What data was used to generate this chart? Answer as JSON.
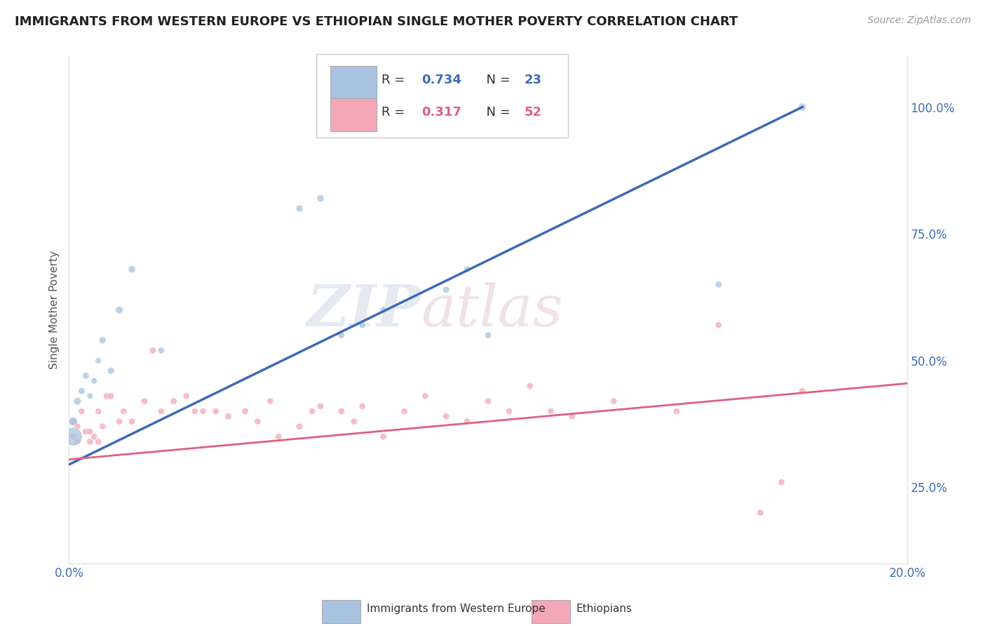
{
  "title": "IMMIGRANTS FROM WESTERN EUROPE VS ETHIOPIAN SINGLE MOTHER POVERTY CORRELATION CHART",
  "source_text": "Source: ZipAtlas.com",
  "ylabel": "Single Mother Poverty",
  "watermark_zip": "ZIP",
  "watermark_atlas": "atlas",
  "legend_r_blue": "0.734",
  "legend_n_blue": "23",
  "legend_r_pink": "0.317",
  "legend_n_pink": "52",
  "legend_label_blue": "Immigrants from Western Europe",
  "legend_label_pink": "Ethiopians",
  "xlim": [
    0.0,
    0.2
  ],
  "ylim": [
    0.1,
    1.1
  ],
  "right_yticks": [
    0.25,
    0.5,
    0.75,
    1.0
  ],
  "right_yticklabels": [
    "25.0%",
    "50.0%",
    "75.0%",
    "100.0%"
  ],
  "xticks": [
    0.0,
    0.04,
    0.08,
    0.12,
    0.16,
    0.2
  ],
  "xticklabels": [
    "0.0%",
    "",
    "",
    "",
    "",
    "20.0%"
  ],
  "blue_color": "#A8C4E0",
  "pink_color": "#F4A8B8",
  "trend_blue_color": "#3D6BB5",
  "trend_pink_color": "#E06080",
  "background_color": "#FFFFFF",
  "grid_color": "#CCCCCC",
  "blue_x": [
    0.001,
    0.001,
    0.002,
    0.003,
    0.004,
    0.005,
    0.006,
    0.007,
    0.008,
    0.01,
    0.012,
    0.015,
    0.022,
    0.055,
    0.06,
    0.065,
    0.07,
    0.075,
    0.09,
    0.095,
    0.1,
    0.155,
    0.175
  ],
  "blue_y": [
    0.35,
    0.38,
    0.42,
    0.44,
    0.47,
    0.43,
    0.46,
    0.5,
    0.54,
    0.48,
    0.6,
    0.68,
    0.52,
    0.8,
    0.82,
    0.55,
    0.57,
    0.6,
    0.64,
    0.68,
    0.55,
    0.65,
    1.0
  ],
  "blue_sizes": [
    350,
    80,
    60,
    50,
    45,
    40,
    40,
    40,
    50,
    50,
    60,
    55,
    45,
    50,
    55,
    45,
    45,
    45,
    45,
    45,
    45,
    45,
    65
  ],
  "pink_x": [
    0.001,
    0.001,
    0.002,
    0.002,
    0.003,
    0.004,
    0.005,
    0.005,
    0.006,
    0.007,
    0.007,
    0.008,
    0.009,
    0.01,
    0.012,
    0.013,
    0.015,
    0.018,
    0.02,
    0.022,
    0.025,
    0.028,
    0.03,
    0.032,
    0.035,
    0.038,
    0.042,
    0.045,
    0.048,
    0.05,
    0.055,
    0.058,
    0.06,
    0.065,
    0.068,
    0.07,
    0.075,
    0.08,
    0.085,
    0.09,
    0.095,
    0.1,
    0.105,
    0.11,
    0.115,
    0.12,
    0.13,
    0.145,
    0.155,
    0.165,
    0.17,
    0.175
  ],
  "pink_y": [
    0.38,
    0.35,
    0.34,
    0.37,
    0.4,
    0.36,
    0.36,
    0.34,
    0.35,
    0.4,
    0.34,
    0.37,
    0.43,
    0.43,
    0.38,
    0.4,
    0.38,
    0.42,
    0.52,
    0.4,
    0.42,
    0.43,
    0.4,
    0.4,
    0.4,
    0.39,
    0.4,
    0.38,
    0.42,
    0.35,
    0.37,
    0.4,
    0.41,
    0.4,
    0.38,
    0.41,
    0.35,
    0.4,
    0.43,
    0.39,
    0.38,
    0.42,
    0.4,
    0.45,
    0.4,
    0.39,
    0.42,
    0.4,
    0.57,
    0.2,
    0.26,
    0.44
  ],
  "pink_sizes": [
    55,
    45,
    45,
    45,
    45,
    45,
    45,
    45,
    45,
    45,
    45,
    45,
    45,
    45,
    45,
    45,
    45,
    45,
    45,
    45,
    45,
    45,
    45,
    45,
    45,
    45,
    45,
    45,
    45,
    45,
    45,
    45,
    45,
    45,
    45,
    45,
    45,
    45,
    45,
    45,
    45,
    45,
    45,
    45,
    45,
    45,
    45,
    45,
    45,
    45,
    45,
    45
  ],
  "trend_blue_x0": 0.0,
  "trend_blue_y0": 0.295,
  "trend_blue_x1": 0.175,
  "trend_blue_y1": 1.0,
  "trend_pink_x0": 0.0,
  "trend_pink_y0": 0.305,
  "trend_pink_x1": 0.2,
  "trend_pink_y1": 0.455
}
